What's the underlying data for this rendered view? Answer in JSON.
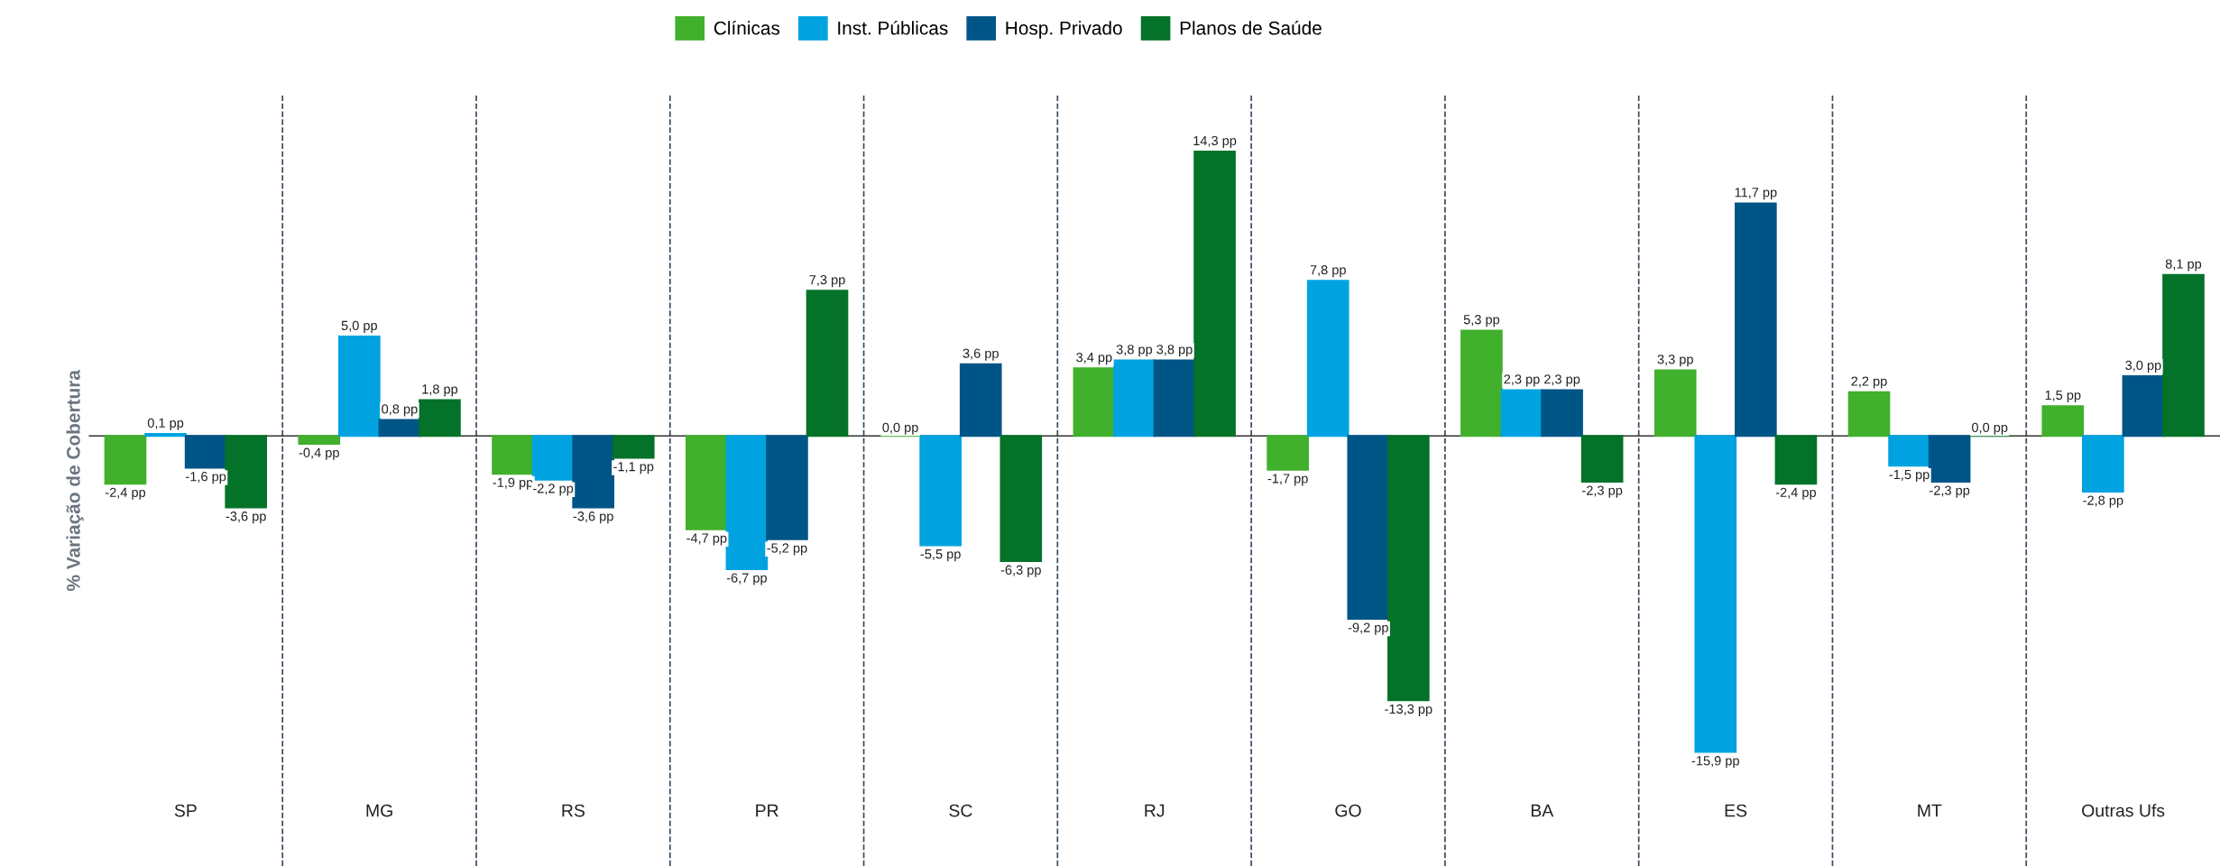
{
  "chart_data": {
    "type": "bar",
    "ylabel": "% Variação de Cobertura",
    "legend": "top",
    "categories": [
      "SP",
      "MG",
      "RS",
      "PR",
      "SC",
      "RJ",
      "GO",
      "BA",
      "ES",
      "MT",
      "Outras Ufs"
    ],
    "series": [
      {
        "name": "Clínicas",
        "color": "#41b02c",
        "values": [
          -2.4,
          -0.4,
          -1.9,
          -4.7,
          0.0,
          3.4,
          -1.7,
          5.3,
          3.3,
          2.2,
          1.5
        ],
        "value_labels": [
          "-2,4 pp",
          "-0,4 pp",
          "-1,9 pp",
          "-4,7 pp",
          "0,0 pp",
          "3,4 pp",
          "-1,7 pp",
          "5,3 pp",
          "3,3 pp",
          "2,2 pp",
          "1,5 pp"
        ]
      },
      {
        "name": "Inst. Públicas",
        "color": "#00a3e0",
        "values": [
          0.1,
          5.0,
          -2.2,
          -6.7,
          -5.5,
          3.8,
          7.8,
          2.3,
          -15.9,
          -1.5,
          -2.8
        ],
        "value_labels": [
          "0,1 pp",
          "5,0 pp",
          "-2,2 pp",
          "-6,7 pp",
          "-5,5 pp",
          "3,8 pp",
          "7,8 pp",
          "2,3 pp",
          "-15,9 pp",
          "-1,5 pp",
          "-2,8 pp"
        ]
      },
      {
        "name": "Hosp. Privado",
        "color": "#005587",
        "values": [
          -1.6,
          0.8,
          -3.6,
          -5.2,
          3.6,
          3.8,
          -9.2,
          2.3,
          11.7,
          -2.3,
          3.0
        ],
        "value_labels": [
          "-1,6 pp",
          "0,8 pp",
          "-3,6 pp",
          "-5,2 pp",
          "3,6 pp",
          "3,8 pp",
          "-9,2 pp",
          "2,3 pp",
          "11,7 pp",
          "-2,3 pp",
          "3,0 pp"
        ]
      },
      {
        "name": "Planos de Saúde",
        "color": "#047228",
        "values": [
          -3.6,
          1.8,
          -1.1,
          7.3,
          -6.3,
          14.3,
          -13.3,
          -2.3,
          -2.4,
          0.0,
          8.1
        ],
        "value_labels": [
          "-3,6 pp",
          "1,8 pp",
          "-1,1 pp",
          "7,3 pp",
          "-6,3 pp",
          "14,3 pp",
          "-13,3 pp",
          "-2,3 pp",
          "-2,4 pp",
          "0,0 pp",
          "8,1 pp"
        ]
      }
    ]
  }
}
